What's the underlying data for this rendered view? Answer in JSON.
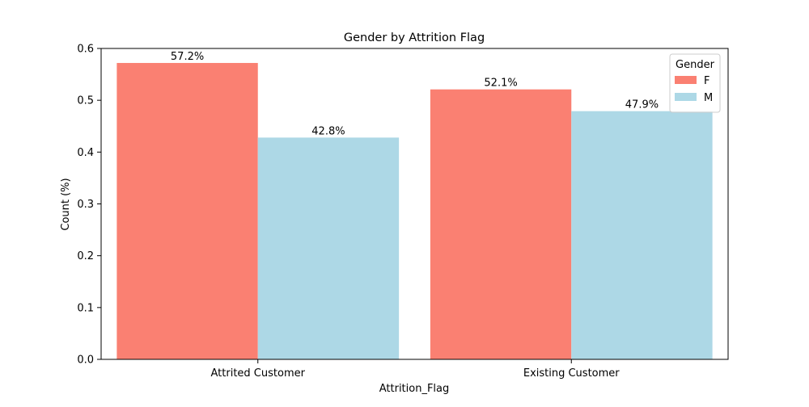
{
  "chart_data": {
    "type": "bar",
    "title": "Gender by Attrition Flag",
    "xlabel": "Attrition_Flag",
    "ylabel": "Count (%)",
    "categories": [
      "Attrited Customer",
      "Existing Customer"
    ],
    "series": [
      {
        "name": "F",
        "values": [
          0.572,
          0.521
        ],
        "labels": [
          "57.2%",
          "52.1%"
        ],
        "color": "#fa8072"
      },
      {
        "name": "M",
        "values": [
          0.428,
          0.479
        ],
        "labels": [
          "42.8%",
          "47.9%"
        ],
        "color": "#add8e6"
      }
    ],
    "ylim": [
      0,
      0.6
    ],
    "yticks": [
      0.0,
      0.1,
      0.2,
      0.3,
      0.4,
      0.5,
      0.6
    ],
    "ytick_labels": [
      "0.0",
      "0.1",
      "0.2",
      "0.3",
      "0.4",
      "0.5",
      "0.6"
    ],
    "grid": false,
    "legend": {
      "title": "Gender",
      "placement": "top-right"
    }
  }
}
